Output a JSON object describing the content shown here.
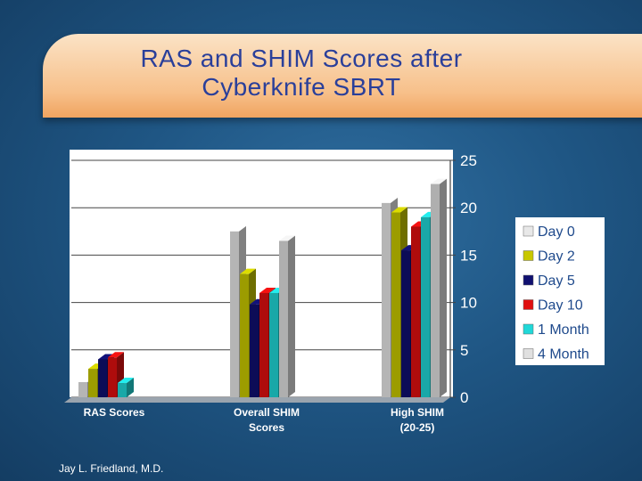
{
  "chart_data": {
    "type": "bar",
    "title": "RAS and SHIM  Scores after Cyberknife SBRT",
    "title_lines": [
      "RAS and SHIM  Scores after",
      "Cyberknife SBRT"
    ],
    "categories": [
      "RAS Scores",
      "Overall SHIM Scores",
      "High SHIM (20-25)"
    ],
    "category_lines": [
      [
        "RAS Scores"
      ],
      [
        "Overall SHIM",
        "Scores"
      ],
      [
        "High SHIM",
        "(20-25)"
      ]
    ],
    "series": [
      {
        "name": "Day 0",
        "color": "#e8e8e8",
        "values": [
          1.6,
          17.5,
          20.5
        ]
      },
      {
        "name": "Day 2",
        "color": "#c8c800",
        "values": [
          3.0,
          13.0,
          19.5
        ]
      },
      {
        "name": "Day 5",
        "color": "#101070",
        "values": [
          4.0,
          9.8,
          15.5
        ]
      },
      {
        "name": "Day 10",
        "color": "#e01010",
        "values": [
          4.2,
          11.0,
          18.0
        ]
      },
      {
        "name": "1 Month",
        "color": "#20d8d8",
        "values": [
          1.5,
          11.0,
          19.0
        ]
      },
      {
        "name": "4 Month",
        "color": "#e0e0e0",
        "values": [
          null,
          16.5,
          22.5
        ]
      }
    ],
    "ylim": [
      0,
      25
    ],
    "yticks": [
      0,
      5,
      10,
      15,
      20,
      25
    ],
    "grid": true,
    "legend_position": "right",
    "y_axis_position": "right"
  },
  "footer": {
    "author": "Jay L. Friedland, M.D."
  }
}
